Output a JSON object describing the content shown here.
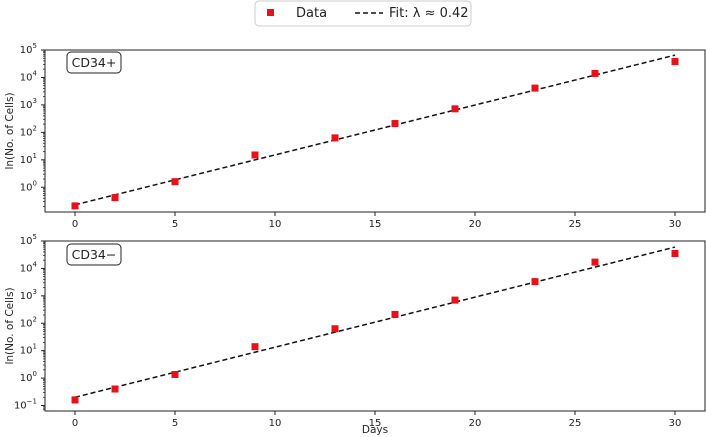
{
  "chart_data": [
    {
      "type": "scatter",
      "panel_label": "CD34+",
      "ylabel": "ln(No. of Cells)",
      "xlabel": "",
      "xlim": [
        -1.5,
        31.5
      ],
      "ylim_log10": [
        -0.9,
        5
      ],
      "y_scale": "log",
      "x_ticks": [
        0,
        5,
        10,
        15,
        20,
        25,
        30
      ],
      "y_ticks_exp": [
        0,
        1,
        2,
        3,
        4,
        5
      ],
      "series": [
        {
          "name": "Data",
          "marker": "square",
          "color": "#e8101a",
          "points": [
            {
              "x": 0,
              "y": 0.21
            },
            {
              "x": 2,
              "y": 0.42
            },
            {
              "x": 5,
              "y": 1.6
            },
            {
              "x": 9,
              "y": 15
            },
            {
              "x": 13,
              "y": 63
            },
            {
              "x": 16,
              "y": 210
            },
            {
              "x": 19,
              "y": 720
            },
            {
              "x": 23,
              "y": 4100
            },
            {
              "x": 26,
              "y": 14000
            },
            {
              "x": 30,
              "y": 38000
            }
          ]
        },
        {
          "name": "Fit: λ ≈ 0.42",
          "style": "dashed",
          "color": "#111111",
          "line": [
            {
              "x": 0,
              "y": 0.23
            },
            {
              "x": 30,
              "y": 65000
            }
          ]
        }
      ]
    },
    {
      "type": "scatter",
      "panel_label": "CD34−",
      "ylabel": "ln(No. of Cells)",
      "xlabel": "Days",
      "xlim": [
        -1.5,
        31.5
      ],
      "ylim_log10": [
        -1.2,
        5
      ],
      "y_scale": "log",
      "x_ticks": [
        0,
        5,
        10,
        15,
        20,
        25,
        30
      ],
      "y_ticks_exp": [
        -1,
        0,
        1,
        2,
        3,
        4,
        5
      ],
      "series": [
        {
          "name": "Data",
          "marker": "square",
          "color": "#e8101a",
          "points": [
            {
              "x": 0,
              "y": 0.16
            },
            {
              "x": 2,
              "y": 0.4
            },
            {
              "x": 5,
              "y": 1.35
            },
            {
              "x": 9,
              "y": 14
            },
            {
              "x": 13,
              "y": 63
            },
            {
              "x": 16,
              "y": 210
            },
            {
              "x": 19,
              "y": 700
            },
            {
              "x": 23,
              "y": 3300
            },
            {
              "x": 26,
              "y": 17000
            },
            {
              "x": 30,
              "y": 35000
            }
          ]
        },
        {
          "name": "Fit: λ ≈ 0.42",
          "style": "dashed",
          "color": "#111111",
          "line": [
            {
              "x": 0,
              "y": 0.2
            },
            {
              "x": 30,
              "y": 60000
            }
          ]
        }
      ]
    }
  ],
  "legend": {
    "placement": "top-center",
    "entries": [
      {
        "label": "Data",
        "kind": "marker",
        "color": "#e8101a"
      },
      {
        "label": "Fit: λ ≈ 0.42",
        "kind": "dashed-line",
        "color": "#111111"
      }
    ]
  }
}
